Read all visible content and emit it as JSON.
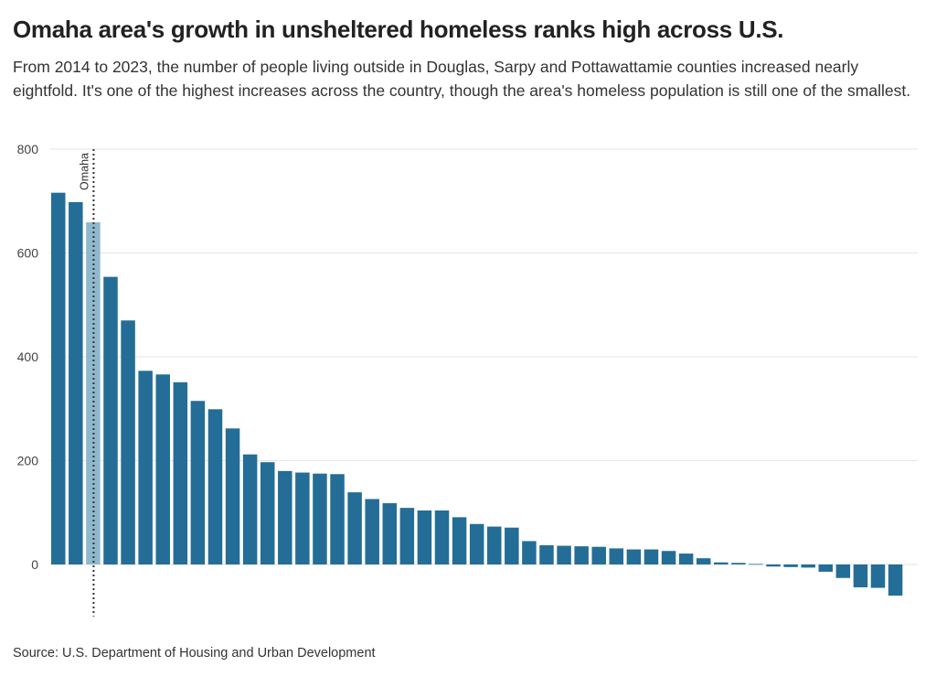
{
  "title": "Omaha area's growth in unsheltered homeless ranks high across U.S.",
  "subtitle": "From 2014 to 2023, the number of people living outside in Douglas, Sarpy and Pottawattamie counties increased nearly eightfold. It's one of the highest increases across the country, though the area's homeless population is still one of the smallest.",
  "source": "Source: U.S. Department of Housing and Urban Development",
  "colors": {
    "bar": "#246d96",
    "highlight": "#8fb8cc",
    "grid": "#e6e6e6",
    "annotation_line": "#333333"
  },
  "chart_data": {
    "type": "bar",
    "title": "Omaha area's growth in unsheltered homeless ranks high across U.S.",
    "subtitle": "From 2014 to 2023, the number of people living outside in Douglas, Sarpy and Pottawattamie counties increased nearly eightfold. It's one of the highest increases across the country, though the area's homeless population is still one of the smallest.",
    "xlabel": "",
    "ylabel": "",
    "ylim": [
      -100,
      800
    ],
    "yticks": [
      0,
      200,
      400,
      600,
      800
    ],
    "ytick_labels": [
      "0",
      "200",
      "400",
      "600",
      "800"
    ],
    "grid": true,
    "highlight_index": 2,
    "annotation": {
      "label": "Omaha",
      "bar_index": 2,
      "style": "dotted vertical line"
    },
    "values": [
      716,
      698,
      659,
      554,
      470,
      373,
      366,
      351,
      315,
      299,
      262,
      212,
      197,
      180,
      177,
      175,
      174,
      139,
      126,
      118,
      109,
      104,
      104,
      91,
      78,
      73,
      71,
      45,
      37,
      36,
      35,
      34,
      31,
      29,
      29,
      26,
      21,
      12,
      4,
      3,
      1,
      -4,
      -5,
      -6,
      -14,
      -26,
      -44,
      -45,
      -60
    ]
  }
}
